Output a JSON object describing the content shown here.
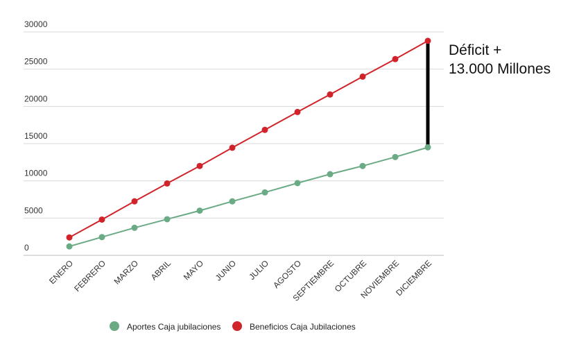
{
  "chart_data": {
    "type": "line",
    "categories": [
      "ENERO",
      "FEBRERO",
      "MARZO",
      "ABRIL",
      "MAYO",
      "JUNIO",
      "JULIO",
      "AGOSTO",
      "SEPTIEMBRE",
      "OCTUBRE",
      "NOVIEMBRE",
      "DICIEMBRE"
    ],
    "series": [
      {
        "name": "Aportes Caja jubilaciones",
        "color": "#6aaa84",
        "values": [
          1200,
          2450,
          3700,
          4850,
          6000,
          7250,
          8450,
          9700,
          10900,
          12000,
          13200,
          14500
        ]
      },
      {
        "name": "Beneficios Caja Jubilaciones",
        "color": "#d0232a",
        "values": [
          2400,
          4800,
          7250,
          9650,
          12000,
          14450,
          16850,
          19250,
          21600,
          24000,
          26350,
          28800
        ]
      }
    ],
    "yticks": [
      0,
      5000,
      10000,
      15000,
      20000,
      25000,
      30000
    ],
    "ylim": [
      0,
      30000
    ],
    "grid": "horizontal",
    "legend_position": "bottom",
    "title": "",
    "xlabel": "",
    "ylabel": "",
    "annotation": {
      "lines": [
        "Déficit +",
        "13.000 Millones"
      ],
      "category": "DICIEMBRE",
      "from": 14500,
      "to": 28800,
      "color": "#000000"
    }
  }
}
